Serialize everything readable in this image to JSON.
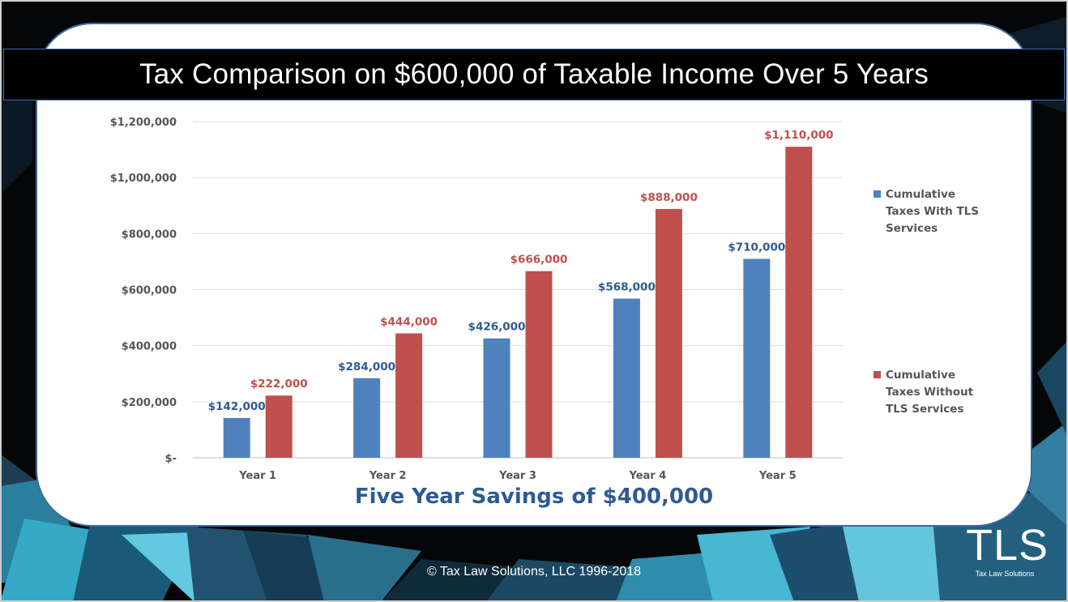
{
  "slide": {
    "title": "Tax Comparison on $600,000 of Taxable Income Over 5 Years",
    "savings": "Five Year Savings of $400,000",
    "copyright": "© Tax Law Solutions, LLC 1996-2018",
    "logo": {
      "mark": "TLS",
      "subtitle": "Tax Law Solutions"
    }
  },
  "colors": {
    "series_with": "#4f81bd",
    "series_without": "#c0504d",
    "savings_text": "#2e5a91",
    "title_bar": "#000000"
  },
  "chart_data": {
    "type": "bar",
    "categories": [
      "Year 1",
      "Year 2",
      "Year 3",
      "Year 4",
      "Year 5"
    ],
    "series": [
      {
        "name": "Cumulative Taxes With TLS Services",
        "values": [
          142000,
          284000,
          426000,
          568000,
          710000
        ],
        "labels": [
          "$142,000",
          "$284,000",
          "$426,000",
          "$568,000",
          "$710,000"
        ]
      },
      {
        "name": "Cumulative Taxes Without TLS Services",
        "values": [
          222000,
          444000,
          666000,
          888000,
          1110000
        ],
        "labels": [
          "$222,000",
          "$444,000",
          "$666,000",
          "$888,000",
          "$1,110,000"
        ]
      }
    ],
    "yticks": [
      0,
      200000,
      400000,
      600000,
      800000,
      1000000,
      1200000
    ],
    "ytick_labels": [
      "$-",
      "$200,000",
      "$400,000",
      "$600,000",
      "$800,000",
      "$1,000,000",
      "$1,200,000"
    ],
    "ylim": [
      0,
      1200000
    ],
    "grid": true,
    "legend_position": "right"
  }
}
